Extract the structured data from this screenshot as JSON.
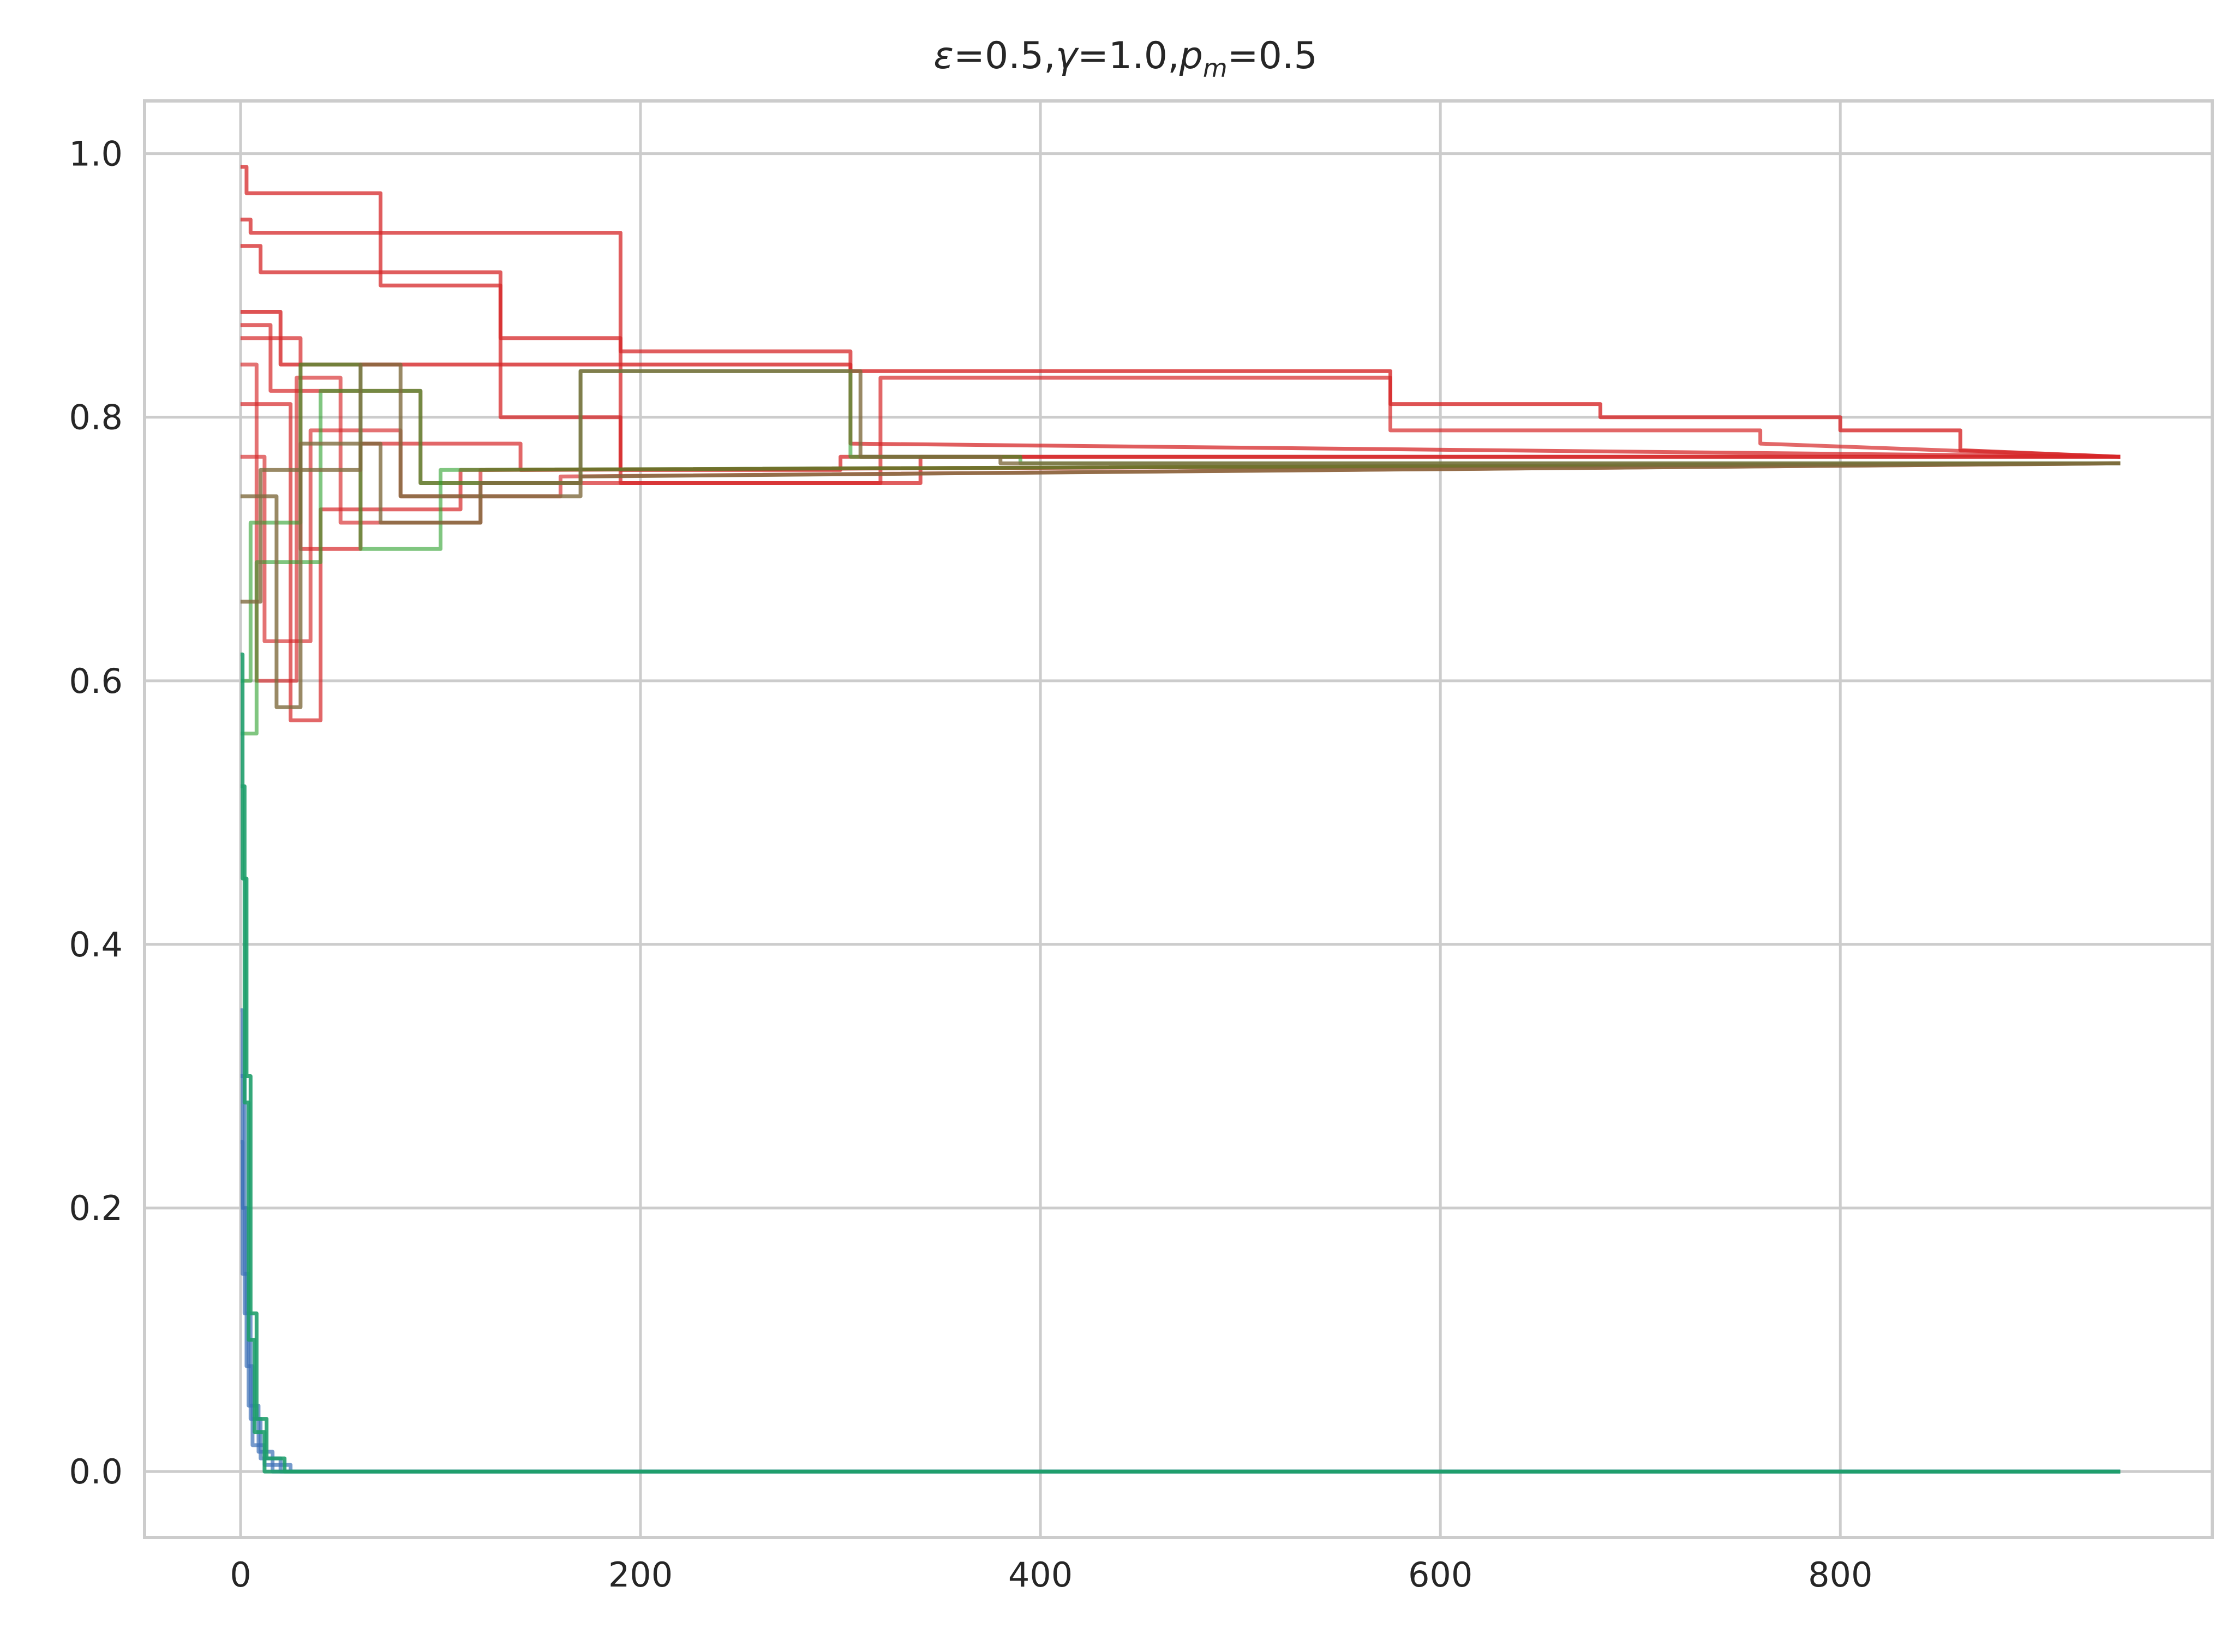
{
  "chart_data": {
    "type": "line",
    "title": "ε=0.5,γ=1.0,p_m=0.5",
    "title_parts": {
      "eps": "ε",
      "eq1": "=0.5,",
      "gamma": "γ",
      "eq2": "=1.0,",
      "p": "p",
      "sub": "m",
      "eq3": "=0.5"
    },
    "xlabel": "",
    "ylabel": "",
    "xlim": [
      -48,
      986
    ],
    "ylim": [
      -0.05,
      1.04
    ],
    "xticks": [
      0,
      200,
      400,
      600,
      800
    ],
    "xtick_labels": [
      "0",
      "200",
      "400",
      "600",
      "800"
    ],
    "yticks": [
      0.0,
      0.2,
      0.4,
      0.6,
      0.8,
      1.0
    ],
    "ytick_labels": [
      "0.0",
      "0.2",
      "0.4",
      "0.6",
      "0.8",
      "1.0"
    ],
    "grid": true,
    "legend": "none",
    "colors": {
      "red": "#d62728",
      "green": "#2ca02c",
      "olive": "#7f6b3f",
      "blue": "#3b6fb6",
      "teal": "#1f9e6b"
    },
    "series": [
      {
        "color": "#d62728",
        "alpha": 0.75,
        "points": [
          [
            0,
            0.99
          ],
          [
            3,
            0.99
          ],
          [
            3,
            0.97
          ],
          [
            70,
            0.97
          ],
          [
            70,
            0.9
          ],
          [
            130,
            0.9
          ],
          [
            130,
            0.8
          ],
          [
            190,
            0.8
          ],
          [
            190,
            0.76
          ],
          [
            300,
            0.76
          ],
          [
            300,
            0.77
          ],
          [
            470,
            0.77
          ],
          [
            470,
            0.77
          ],
          [
            940,
            0.77
          ]
        ]
      },
      {
        "color": "#d62728",
        "alpha": 0.75,
        "points": [
          [
            0,
            0.95
          ],
          [
            5,
            0.95
          ],
          [
            5,
            0.94
          ],
          [
            190,
            0.94
          ],
          [
            190,
            0.75
          ],
          [
            340,
            0.75
          ],
          [
            340,
            0.77
          ],
          [
            940,
            0.77
          ]
        ]
      },
      {
        "color": "#d62728",
        "alpha": 0.75,
        "points": [
          [
            0,
            0.93
          ],
          [
            10,
            0.93
          ],
          [
            10,
            0.91
          ],
          [
            130,
            0.91
          ],
          [
            130,
            0.86
          ],
          [
            190,
            0.86
          ],
          [
            190,
            0.85
          ],
          [
            305,
            0.85
          ],
          [
            305,
            0.78
          ],
          [
            940,
            0.77
          ]
        ]
      },
      {
        "color": "#d62728",
        "alpha": 0.8,
        "points": [
          [
            0,
            0.88
          ],
          [
            20,
            0.88
          ],
          [
            20,
            0.84
          ],
          [
            190,
            0.84
          ],
          [
            190,
            0.84
          ],
          [
            305,
            0.84
          ],
          [
            305,
            0.835
          ],
          [
            575,
            0.835
          ],
          [
            575,
            0.81
          ],
          [
            680,
            0.81
          ],
          [
            680,
            0.8
          ],
          [
            800,
            0.8
          ],
          [
            800,
            0.79
          ],
          [
            860,
            0.79
          ],
          [
            860,
            0.775
          ],
          [
            940,
            0.77
          ]
        ]
      },
      {
        "color": "#d62728",
        "alpha": 0.7,
        "points": [
          [
            0,
            0.87
          ],
          [
            15,
            0.87
          ],
          [
            15,
            0.82
          ],
          [
            90,
            0.82
          ],
          [
            90,
            0.75
          ],
          [
            320,
            0.75
          ],
          [
            320,
            0.83
          ],
          [
            575,
            0.83
          ],
          [
            575,
            0.79
          ],
          [
            760,
            0.79
          ],
          [
            760,
            0.78
          ],
          [
            940,
            0.77
          ]
        ]
      },
      {
        "color": "#d62728",
        "alpha": 0.7,
        "points": [
          [
            0,
            0.86
          ],
          [
            30,
            0.86
          ],
          [
            30,
            0.7
          ],
          [
            60,
            0.7
          ],
          [
            60,
            0.78
          ],
          [
            140,
            0.78
          ],
          [
            140,
            0.76
          ],
          [
            940,
            0.765
          ]
        ]
      },
      {
        "color": "#d62728",
        "alpha": 0.7,
        "points": [
          [
            0,
            0.81
          ],
          [
            25,
            0.81
          ],
          [
            25,
            0.57
          ],
          [
            40,
            0.57
          ],
          [
            40,
            0.73
          ],
          [
            110,
            0.73
          ],
          [
            110,
            0.76
          ],
          [
            940,
            0.765
          ]
        ]
      },
      {
        "color": "#d62728",
        "alpha": 0.65,
        "points": [
          [
            0,
            0.77
          ],
          [
            12,
            0.77
          ],
          [
            12,
            0.63
          ],
          [
            35,
            0.63
          ],
          [
            35,
            0.79
          ],
          [
            80,
            0.79
          ],
          [
            80,
            0.74
          ],
          [
            160,
            0.74
          ],
          [
            160,
            0.755
          ],
          [
            940,
            0.765
          ]
        ]
      },
      {
        "color": "#d62728",
        "alpha": 0.65,
        "points": [
          [
            0,
            0.84
          ],
          [
            8,
            0.84
          ],
          [
            8,
            0.6
          ],
          [
            28,
            0.6
          ],
          [
            28,
            0.83
          ],
          [
            50,
            0.83
          ],
          [
            50,
            0.72
          ],
          [
            120,
            0.72
          ],
          [
            120,
            0.76
          ],
          [
            940,
            0.765
          ]
        ]
      },
      {
        "color": "#2ca02c",
        "alpha": 0.6,
        "points": [
          [
            0,
            0.6
          ],
          [
            5,
            0.6
          ],
          [
            5,
            0.72
          ],
          [
            30,
            0.72
          ],
          [
            30,
            0.84
          ],
          [
            60,
            0.84
          ],
          [
            60,
            0.7
          ],
          [
            100,
            0.7
          ],
          [
            100,
            0.76
          ],
          [
            940,
            0.765
          ]
        ]
      },
      {
        "color": "#2ca02c",
        "alpha": 0.6,
        "points": [
          [
            0,
            0.56
          ],
          [
            8,
            0.56
          ],
          [
            8,
            0.69
          ],
          [
            40,
            0.69
          ],
          [
            40,
            0.82
          ],
          [
            90,
            0.82
          ],
          [
            90,
            0.75
          ],
          [
            170,
            0.75
          ],
          [
            170,
            0.835
          ],
          [
            305,
            0.835
          ],
          [
            305,
            0.77
          ],
          [
            390,
            0.77
          ],
          [
            390,
            0.765
          ],
          [
            940,
            0.765
          ]
        ]
      },
      {
        "color": "#7f6b3f",
        "alpha": 0.8,
        "points": [
          [
            0,
            0.66
          ],
          [
            10,
            0.66
          ],
          [
            10,
            0.76
          ],
          [
            60,
            0.76
          ],
          [
            60,
            0.84
          ],
          [
            80,
            0.84
          ],
          [
            80,
            0.74
          ],
          [
            170,
            0.74
          ],
          [
            170,
            0.835
          ],
          [
            310,
            0.835
          ],
          [
            310,
            0.77
          ],
          [
            380,
            0.77
          ],
          [
            380,
            0.765
          ],
          [
            940,
            0.765
          ]
        ]
      },
      {
        "color": "#7f6b3f",
        "alpha": 0.8,
        "points": [
          [
            0,
            0.74
          ],
          [
            18,
            0.74
          ],
          [
            18,
            0.58
          ],
          [
            30,
            0.58
          ],
          [
            30,
            0.78
          ],
          [
            70,
            0.78
          ],
          [
            70,
            0.72
          ],
          [
            120,
            0.72
          ],
          [
            120,
            0.75
          ],
          [
            170,
            0.75
          ],
          [
            170,
            0.755
          ],
          [
            940,
            0.765
          ]
        ]
      },
      {
        "color": "#3b6fb6",
        "alpha": 0.7,
        "points": [
          [
            0,
            0.35
          ],
          [
            1,
            0.35
          ],
          [
            1,
            0.2
          ],
          [
            3,
            0.2
          ],
          [
            3,
            0.08
          ],
          [
            6,
            0.08
          ],
          [
            6,
            0.02
          ],
          [
            12,
            0.02
          ],
          [
            12,
            0.005
          ],
          [
            25,
            0.005
          ],
          [
            25,
            0.0
          ],
          [
            940,
            0.0
          ]
        ]
      },
      {
        "color": "#3b6fb6",
        "alpha": 0.7,
        "points": [
          [
            0,
            0.3
          ],
          [
            2,
            0.3
          ],
          [
            2,
            0.12
          ],
          [
            5,
            0.12
          ],
          [
            5,
            0.04
          ],
          [
            10,
            0.04
          ],
          [
            10,
            0.01
          ],
          [
            20,
            0.01
          ],
          [
            20,
            0.0
          ],
          [
            940,
            0.0
          ]
        ]
      },
      {
        "color": "#3b6fb6",
        "alpha": 0.7,
        "points": [
          [
            0,
            0.25
          ],
          [
            1,
            0.25
          ],
          [
            1,
            0.15
          ],
          [
            4,
            0.15
          ],
          [
            4,
            0.05
          ],
          [
            9,
            0.05
          ],
          [
            9,
            0.015
          ],
          [
            16,
            0.015
          ],
          [
            16,
            0.0
          ],
          [
            940,
            0.0
          ]
        ]
      },
      {
        "color": "#1f9e6b",
        "alpha": 0.9,
        "points": [
          [
            0,
            0.62
          ],
          [
            1,
            0.62
          ],
          [
            1,
            0.45
          ],
          [
            3,
            0.45
          ],
          [
            3,
            0.3
          ],
          [
            5,
            0.3
          ],
          [
            5,
            0.12
          ],
          [
            8,
            0.12
          ],
          [
            8,
            0.04
          ],
          [
            13,
            0.04
          ],
          [
            13,
            0.01
          ],
          [
            22,
            0.01
          ],
          [
            22,
            0.0
          ],
          [
            940,
            0.0
          ]
        ]
      },
      {
        "color": "#1f9e6b",
        "alpha": 0.9,
        "points": [
          [
            0,
            0.52
          ],
          [
            2,
            0.52
          ],
          [
            2,
            0.28
          ],
          [
            4,
            0.28
          ],
          [
            4,
            0.1
          ],
          [
            7,
            0.1
          ],
          [
            7,
            0.03
          ],
          [
            12,
            0.03
          ],
          [
            12,
            0.0
          ],
          [
            940,
            0.0
          ]
        ]
      }
    ]
  }
}
